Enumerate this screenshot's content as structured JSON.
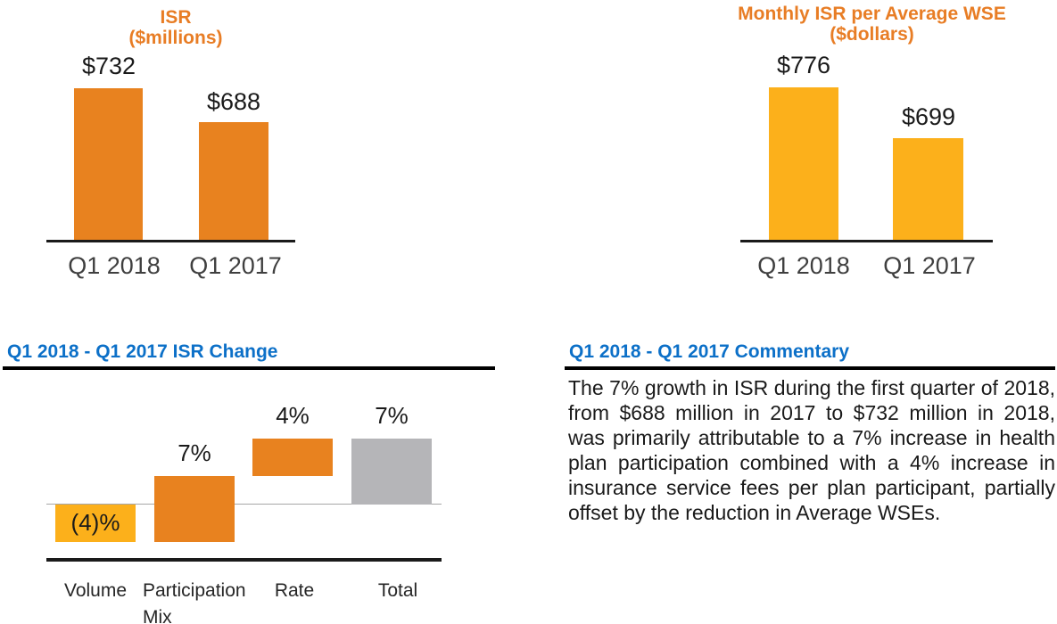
{
  "colors": {
    "orange_bar": "#E8821F",
    "amber_bar": "#FCB01B",
    "gray_bar": "#B5B5B8",
    "title_orange": "#E87D25",
    "heading_blue": "#0C70C8",
    "axis_black": "#1A1A1A",
    "zero_baseline_gray": "#A6A6A6"
  },
  "isr_chart": {
    "title_line1": "ISR",
    "title_line2": "($millions)",
    "bars": [
      {
        "category": "Q1 2018",
        "label": "$732",
        "value": 732
      },
      {
        "category": "Q1 2017",
        "label": "$688",
        "value": 688
      }
    ]
  },
  "wse_chart": {
    "title_line1": "Monthly ISR per Average WSE",
    "title_line2": "($dollars)",
    "bars": [
      {
        "category": "Q1 2018",
        "label": "$776",
        "value": 776
      },
      {
        "category": "Q1 2017",
        "label": "$699",
        "value": 699
      }
    ]
  },
  "waterfall": {
    "heading": "Q1 2018 - Q1 2017 ISR Change",
    "bars": [
      {
        "category_line1": "Volume",
        "category_line2": "",
        "label": "(4)%",
        "value": -4
      },
      {
        "category_line1": "Participation",
        "category_line2": "Mix",
        "label": "7%",
        "value": 7
      },
      {
        "category_line1": "Rate",
        "category_line2": "",
        "label": "4%",
        "value": 4
      },
      {
        "category_line1": "Total",
        "category_line2": "",
        "label": "7%",
        "value": 7
      }
    ]
  },
  "commentary": {
    "heading": "Q1 2018 - Q1 2017 Commentary",
    "body": "The 7% growth in ISR during the first quarter of 2018, from $688 million in 2017 to $732 million in 2018, was primarily attributable to a 7% increase in health plan participation combined with a 4% increase in insurance service fees per plan participant, partially offset by the reduction in Average WSEs."
  },
  "chart_data": [
    {
      "type": "bar",
      "title": "ISR ($millions)",
      "categories": [
        "Q1 2018",
        "Q1 2017"
      ],
      "values": [
        732,
        688
      ],
      "data_labels": [
        "$732",
        "$688"
      ],
      "bar_color": "#E8821F",
      "xlabel": "",
      "ylabel": "",
      "grid": false,
      "legend": false
    },
    {
      "type": "bar",
      "title": "Monthly ISR per Average WSE ($dollars)",
      "categories": [
        "Q1 2018",
        "Q1 2017"
      ],
      "values": [
        776,
        699
      ],
      "data_labels": [
        "$776",
        "$699"
      ],
      "bar_color": "#FCB01B",
      "xlabel": "",
      "ylabel": "",
      "grid": false,
      "legend": false
    },
    {
      "type": "bar",
      "subtype": "waterfall",
      "title": "Q1 2018 - Q1 2017 ISR Change",
      "categories": [
        "Volume",
        "Participation Mix",
        "Rate",
        "Total"
      ],
      "values": [
        -4,
        7,
        4,
        7
      ],
      "running_spans": [
        [
          0,
          -4
        ],
        [
          -4,
          3
        ],
        [
          3,
          7
        ],
        [
          0,
          7
        ]
      ],
      "data_labels": [
        "(4)%",
        "7%",
        "4%",
        "7%"
      ],
      "segment_colors": [
        "#FCB01B",
        "#E8821F",
        "#E8821F",
        "#B5B5B8"
      ],
      "baseline": 0,
      "ylim": [
        -4,
        7
      ],
      "grid": false,
      "legend": false
    }
  ]
}
